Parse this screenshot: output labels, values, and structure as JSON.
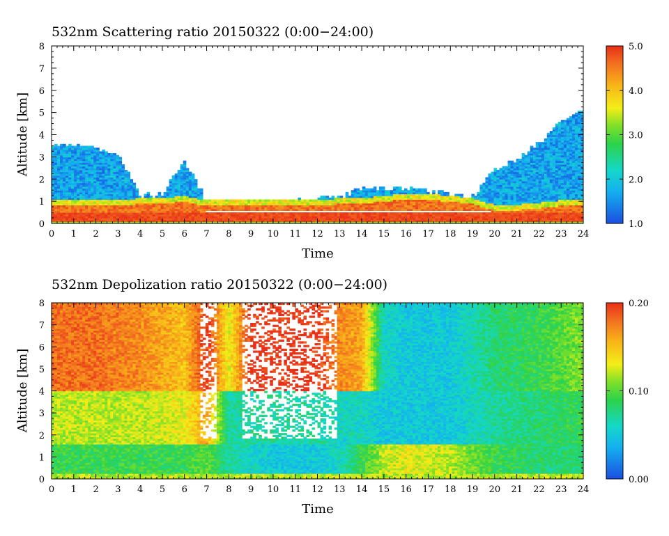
{
  "chart_data": [
    {
      "type": "heatmap",
      "title": "532nm Scattering ratio  20150322 (0:00−24:00)",
      "xlabel": "Time",
      "ylabel": "Altitude [km]",
      "xlim": [
        0,
        24
      ],
      "ylim": [
        0,
        8
      ],
      "xticks": [
        "0",
        "1",
        "2",
        "3",
        "4",
        "5",
        "6",
        "7",
        "8",
        "9",
        "10",
        "11",
        "12",
        "13",
        "14",
        "15",
        "16",
        "17",
        "18",
        "19",
        "20",
        "21",
        "22",
        "23",
        "24"
      ],
      "yticks": [
        "0",
        "1",
        "2",
        "3",
        "4",
        "5",
        "6",
        "7",
        "8"
      ],
      "colorbar": {
        "range": [
          1.0,
          5.0
        ],
        "ticks": [
          "1.0",
          "2.0",
          "3.0",
          "4.0",
          "5.0"
        ]
      },
      "series": [
        {
          "description_free": true,
          "x": [
            0,
            1,
            2,
            3,
            4,
            5,
            6,
            7,
            8,
            9,
            10,
            11,
            12,
            13,
            14,
            15,
            16,
            17,
            18,
            19,
            20,
            21,
            22,
            23,
            24
          ],
          "cloud_top_km": [
            3.5,
            3.5,
            3.4,
            3.2,
            1.3,
            1.3,
            2.9,
            1.0,
            0.9,
            0.9,
            0.9,
            1.0,
            1.1,
            1.2,
            1.6,
            1.6,
            1.6,
            1.5,
            1.3,
            1.2,
            2.4,
            2.9,
            3.6,
            4.6,
            5.2
          ],
          "bright_layer_top_km": [
            0.8,
            0.8,
            0.8,
            0.8,
            0.9,
            0.9,
            1.0,
            0.8,
            0.8,
            0.8,
            0.8,
            0.8,
            0.8,
            0.9,
            0.9,
            1.0,
            1.1,
            1.1,
            1.0,
            0.9,
            0.6,
            0.6,
            0.7,
            0.8,
            0.8
          ]
        }
      ]
    },
    {
      "type": "heatmap",
      "title": "532nm Depolization ratio  20150322 (0:00−24:00)",
      "xlabel": "Time",
      "ylabel": "Altitude [km]",
      "xlim": [
        0,
        24
      ],
      "ylim": [
        0,
        8
      ],
      "xticks": [
        "0",
        "1",
        "2",
        "3",
        "4",
        "5",
        "6",
        "7",
        "8",
        "9",
        "10",
        "11",
        "12",
        "13",
        "14",
        "15",
        "16",
        "17",
        "18",
        "19",
        "20",
        "21",
        "22",
        "23",
        "24"
      ],
      "yticks": [
        "0",
        "1",
        "2",
        "3",
        "4",
        "5",
        "6",
        "7",
        "8"
      ],
      "colorbar": {
        "range": [
          0.0,
          0.2
        ],
        "ticks": [
          "0.00",
          "0.10",
          "0.20"
        ]
      },
      "series": [
        {
          "x": [
            0,
            2,
            4,
            6,
            7,
            8,
            9,
            10,
            11,
            12,
            13,
            14,
            15,
            16,
            18,
            20,
            22,
            24
          ],
          "upper_layer_value": [
            0.18,
            0.18,
            0.17,
            0.15,
            0.2,
            0.13,
            0.2,
            0.2,
            0.2,
            0.2,
            0.17,
            0.16,
            0.06,
            0.05,
            0.05,
            0.08,
            0.09,
            0.11
          ],
          "mid_layer_value": [
            0.12,
            0.12,
            0.12,
            0.13,
            0.16,
            0.07,
            0.07,
            0.07,
            0.07,
            0.07,
            0.06,
            0.06,
            0.05,
            0.05,
            0.05,
            0.07,
            0.08,
            0.09
          ],
          "low_layer_value": [
            0.09,
            0.09,
            0.09,
            0.09,
            0.1,
            0.07,
            0.06,
            0.05,
            0.05,
            0.05,
            0.06,
            0.09,
            0.12,
            0.13,
            0.12,
            0.09,
            0.08,
            0.08
          ]
        }
      ]
    }
  ]
}
